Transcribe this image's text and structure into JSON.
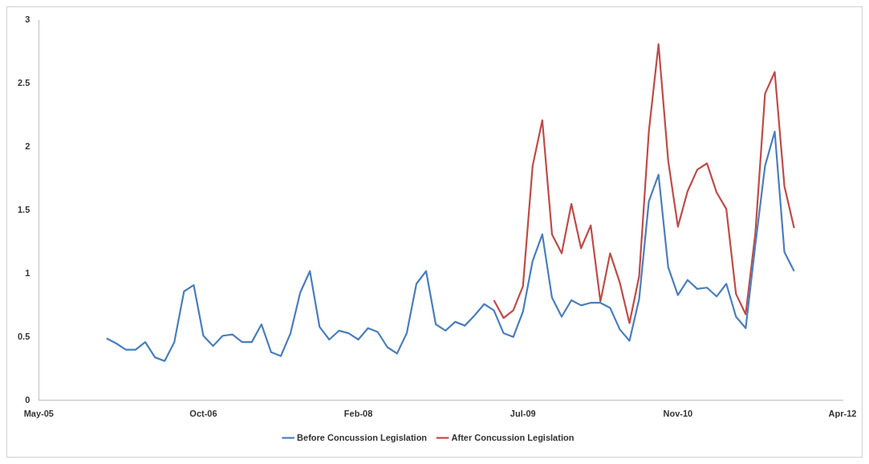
{
  "chart_data": {
    "type": "line",
    "xlim": [
      "2005-05",
      "2012-04"
    ],
    "xticks": [
      {
        "value": "2005-05",
        "label": "May-05"
      },
      {
        "value": "2006-10",
        "label": "Oct-06"
      },
      {
        "value": "2008-02",
        "label": "Feb-08"
      },
      {
        "value": "2009-07",
        "label": "Jul-09"
      },
      {
        "value": "2010-11",
        "label": "Nov-10"
      },
      {
        "value": "2012-04",
        "label": "Apr-12"
      }
    ],
    "ylim": [
      0,
      3
    ],
    "yticks": [
      0,
      0.5,
      1,
      1.5,
      2,
      2.5,
      3
    ],
    "grid": false,
    "legend": "bottom",
    "marker": "none",
    "line_style": "solid",
    "series": [
      {
        "name": "Before Concussion Legislation",
        "color": "#4a7ebb",
        "x": [
          "2005-12",
          "2006-01",
          "2006-02",
          "2006-03",
          "2006-04",
          "2006-05",
          "2006-06",
          "2006-07",
          "2006-08",
          "2006-09",
          "2006-10",
          "2006-11",
          "2006-12",
          "2007-01",
          "2007-02",
          "2007-03",
          "2007-04",
          "2007-05",
          "2007-06",
          "2007-07",
          "2007-08",
          "2007-09",
          "2007-10",
          "2007-11",
          "2007-12",
          "2008-01",
          "2008-02",
          "2008-03",
          "2008-04",
          "2008-05",
          "2008-06",
          "2008-07",
          "2008-08",
          "2008-09",
          "2008-10",
          "2008-11",
          "2008-12",
          "2009-01",
          "2009-02",
          "2009-03",
          "2009-04",
          "2009-05",
          "2009-06",
          "2009-07",
          "2009-08",
          "2009-09",
          "2009-10",
          "2009-11",
          "2009-12",
          "2010-01",
          "2010-02",
          "2010-03",
          "2010-04",
          "2010-05",
          "2010-06",
          "2010-07",
          "2010-08",
          "2010-09",
          "2010-10",
          "2010-11",
          "2010-12",
          "2011-01",
          "2011-02",
          "2011-03",
          "2011-04",
          "2011-05",
          "2011-06",
          "2011-07",
          "2011-08",
          "2011-09",
          "2011-10",
          "2011-11"
        ],
        "values": [
          0.49,
          0.45,
          0.4,
          0.4,
          0.46,
          0.34,
          0.31,
          0.46,
          0.86,
          0.91,
          0.51,
          0.43,
          0.51,
          0.52,
          0.46,
          0.46,
          0.6,
          0.38,
          0.35,
          0.53,
          0.85,
          1.02,
          0.58,
          0.48,
          0.55,
          0.53,
          0.48,
          0.57,
          0.54,
          0.42,
          0.37,
          0.53,
          0.92,
          1.02,
          0.6,
          0.55,
          0.62,
          0.59,
          0.67,
          0.76,
          0.71,
          0.53,
          0.5,
          0.7,
          1.1,
          1.31,
          0.81,
          0.66,
          0.79,
          0.75,
          0.77,
          0.77,
          0.73,
          0.56,
          0.47,
          0.8,
          1.57,
          1.78,
          1.05,
          0.83,
          0.95,
          0.88,
          0.89,
          0.82,
          0.92,
          0.66,
          0.57,
          1.23,
          1.85,
          2.12,
          1.17,
          1.02
        ]
      },
      {
        "name": "After Concussion Legislation",
        "color": "#be4b48",
        "x": [
          "2009-04",
          "2009-05",
          "2009-06",
          "2009-07",
          "2009-08",
          "2009-09",
          "2009-10",
          "2009-11",
          "2009-12",
          "2010-01",
          "2010-02",
          "2010-03",
          "2010-04",
          "2010-05",
          "2010-06",
          "2010-07",
          "2010-08",
          "2010-09",
          "2010-10",
          "2010-11",
          "2010-12",
          "2011-01",
          "2011-02",
          "2011-03",
          "2011-04",
          "2011-05",
          "2011-06",
          "2011-07",
          "2011-08",
          "2011-09",
          "2011-10",
          "2011-11"
        ],
        "values": [
          0.79,
          0.65,
          0.71,
          0.9,
          1.85,
          2.21,
          1.31,
          1.16,
          1.55,
          1.2,
          1.38,
          0.78,
          1.16,
          0.93,
          0.61,
          0.98,
          2.12,
          2.81,
          1.89,
          1.37,
          1.65,
          1.82,
          1.87,
          1.64,
          1.51,
          0.84,
          0.68,
          1.32,
          2.42,
          2.59,
          1.69,
          1.36
        ]
      }
    ]
  }
}
